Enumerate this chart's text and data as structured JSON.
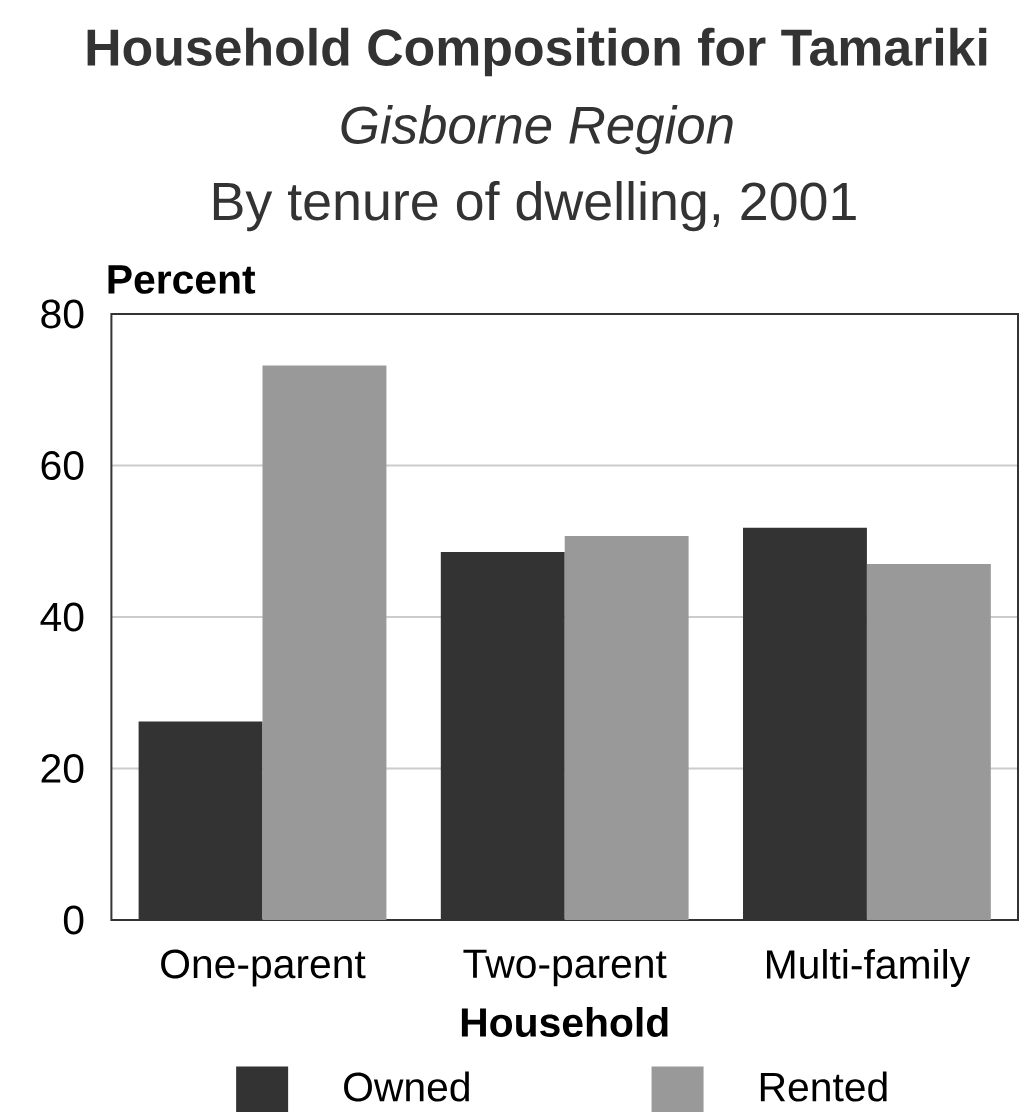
{
  "chart_data": {
    "type": "bar",
    "title": "Household Composition for Tamariki",
    "subtitle": "Gisborne Region",
    "annotations": [
      "By tenure of dwelling, 2001"
    ],
    "xlabel": "Household",
    "ylabel": "Percent",
    "categories": [
      "One-parent",
      "Two-parent",
      "Multi-family"
    ],
    "series": [
      {
        "name": "Owned",
        "color": "#333333",
        "values": [
          26.2,
          48.6,
          51.8
        ]
      },
      {
        "name": "Rented",
        "color": "#999999",
        "values": [
          73.2,
          50.7,
          47.0
        ]
      }
    ],
    "ylim": [
      0,
      80
    ],
    "yticks": [
      0,
      20,
      40,
      60,
      80
    ],
    "grid": "y",
    "legend": "bottom"
  }
}
